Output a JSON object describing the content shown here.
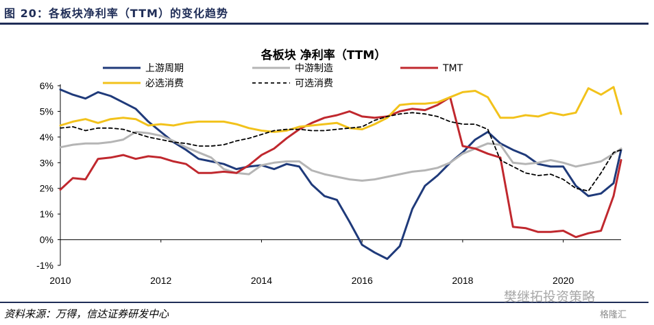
{
  "figure_title": "图 20：各板块净利率（TTM）的变化趋势",
  "source": "资料来源：万得，信达证券研发中心",
  "watermark": "樊继拓投资策略",
  "watermark2": "格隆汇",
  "colors": {
    "title_rule": "#1f2d57",
    "upstream": "#1f3a7a",
    "midstream": "#b5b5b5",
    "tmt": "#c0282e",
    "consumer_staples": "#f2c21b",
    "consumer_disc": "#000000"
  },
  "chart_data": {
    "type": "line",
    "title": "各板块 净利率（TTM）",
    "xlabel": "",
    "ylabel": "",
    "xlim": [
      2010.0,
      2021.15
    ],
    "ylim": [
      -1,
      6
    ],
    "x_ticks": [
      "2010",
      "2012",
      "2014",
      "2016",
      "2018",
      "2020"
    ],
    "y_ticks": [
      "-1%",
      "0%",
      "1%",
      "2%",
      "3%",
      "4%",
      "5%",
      "6%"
    ],
    "y_tick_values": [
      -1,
      0,
      1,
      2,
      3,
      4,
      5,
      6
    ],
    "legend_placement": "top",
    "series": [
      {
        "name": "上游周期",
        "color_key": "upstream",
        "dash": false,
        "x": [
          2010.0,
          2010.25,
          2010.5,
          2010.75,
          2011.0,
          2011.25,
          2011.5,
          2011.75,
          2012.0,
          2012.25,
          2012.5,
          2012.75,
          2013.0,
          2013.25,
          2013.5,
          2013.75,
          2014.0,
          2014.25,
          2014.5,
          2014.75,
          2015.0,
          2015.25,
          2015.5,
          2015.75,
          2016.0,
          2016.25,
          2016.5,
          2016.75,
          2017.0,
          2017.25,
          2017.5,
          2017.75,
          2018.0,
          2018.25,
          2018.5,
          2018.75,
          2019.0,
          2019.25,
          2019.5,
          2019.75,
          2020.0,
          2020.25,
          2020.5,
          2020.75,
          2021.0,
          2021.15
        ],
        "values": [
          5.85,
          5.65,
          5.5,
          5.75,
          5.6,
          5.35,
          5.1,
          4.6,
          4.2,
          3.8,
          3.5,
          3.15,
          3.05,
          2.95,
          2.75,
          2.85,
          2.9,
          2.75,
          2.95,
          2.85,
          2.15,
          1.7,
          1.55,
          0.7,
          -0.2,
          -0.5,
          -0.75,
          -0.25,
          1.2,
          2.1,
          2.5,
          3.0,
          3.4,
          3.9,
          4.2,
          3.75,
          3.5,
          3.3,
          2.95,
          2.85,
          2.85,
          2.1,
          1.7,
          1.8,
          2.2,
          3.5
        ]
      },
      {
        "name": "中游制造",
        "color_key": "midstream",
        "dash": false,
        "x": [
          2010.0,
          2010.25,
          2010.5,
          2010.75,
          2011.0,
          2011.25,
          2011.5,
          2011.75,
          2012.0,
          2012.25,
          2012.5,
          2012.75,
          2013.0,
          2013.25,
          2013.5,
          2013.75,
          2014.0,
          2014.25,
          2014.5,
          2014.75,
          2015.0,
          2015.25,
          2015.5,
          2015.75,
          2016.0,
          2016.25,
          2016.5,
          2016.75,
          2017.0,
          2017.25,
          2017.5,
          2017.75,
          2018.0,
          2018.25,
          2018.5,
          2018.75,
          2019.0,
          2019.25,
          2019.5,
          2019.75,
          2020.0,
          2020.25,
          2020.5,
          2020.75,
          2021.0,
          2021.15
        ],
        "values": [
          3.6,
          3.7,
          3.75,
          3.75,
          3.8,
          3.9,
          4.2,
          4.15,
          4.05,
          3.85,
          3.6,
          3.4,
          3.2,
          2.75,
          2.6,
          2.55,
          2.9,
          3.0,
          3.05,
          3.05,
          2.7,
          2.55,
          2.45,
          2.35,
          2.3,
          2.35,
          2.45,
          2.55,
          2.65,
          2.7,
          2.8,
          3.0,
          3.35,
          3.55,
          3.75,
          3.7,
          3.0,
          2.95,
          3.0,
          3.1,
          3.0,
          2.85,
          2.95,
          3.05,
          3.35,
          3.55
        ]
      },
      {
        "name": "TMT",
        "color_key": "tmt",
        "dash": false,
        "x": [
          2010.0,
          2010.25,
          2010.5,
          2010.75,
          2011.0,
          2011.25,
          2011.5,
          2011.75,
          2012.0,
          2012.25,
          2012.5,
          2012.75,
          2013.0,
          2013.25,
          2013.5,
          2013.75,
          2014.0,
          2014.25,
          2014.5,
          2014.75,
          2015.0,
          2015.25,
          2015.5,
          2015.75,
          2016.0,
          2016.25,
          2016.5,
          2016.75,
          2017.0,
          2017.25,
          2017.5,
          2017.75,
          2018.0,
          2018.25,
          2018.5,
          2018.75,
          2019.0,
          2019.25,
          2019.5,
          2019.75,
          2020.0,
          2020.25,
          2020.5,
          2020.75,
          2021.0,
          2021.15
        ],
        "values": [
          1.95,
          2.4,
          2.35,
          3.15,
          3.2,
          3.3,
          3.15,
          3.25,
          3.2,
          3.05,
          2.95,
          2.6,
          2.6,
          2.65,
          2.6,
          2.9,
          3.3,
          3.55,
          3.95,
          4.3,
          4.55,
          4.75,
          4.85,
          5.0,
          4.8,
          4.75,
          4.8,
          5.0,
          5.1,
          5.05,
          5.25,
          5.55,
          3.65,
          3.55,
          3.35,
          3.2,
          0.5,
          0.45,
          0.3,
          0.3,
          0.35,
          0.1,
          0.25,
          0.35,
          1.7,
          3.1
        ]
      },
      {
        "name": "必选消费",
        "color_key": "consumer_staples",
        "dash": false,
        "x": [
          2010.0,
          2010.25,
          2010.5,
          2010.75,
          2011.0,
          2011.25,
          2011.5,
          2011.75,
          2012.0,
          2012.25,
          2012.5,
          2012.75,
          2013.0,
          2013.25,
          2013.5,
          2013.75,
          2014.0,
          2014.25,
          2014.5,
          2014.75,
          2015.0,
          2015.25,
          2015.5,
          2015.75,
          2016.0,
          2016.25,
          2016.5,
          2016.75,
          2017.0,
          2017.25,
          2017.5,
          2017.75,
          2018.0,
          2018.25,
          2018.5,
          2018.75,
          2019.0,
          2019.25,
          2019.5,
          2019.75,
          2020.0,
          2020.25,
          2020.5,
          2020.75,
          2021.0,
          2021.15
        ],
        "values": [
          4.45,
          4.6,
          4.7,
          4.55,
          4.7,
          4.75,
          4.7,
          4.45,
          4.5,
          4.45,
          4.55,
          4.6,
          4.6,
          4.6,
          4.5,
          4.35,
          4.25,
          4.2,
          4.25,
          4.4,
          4.45,
          4.5,
          4.55,
          4.35,
          4.3,
          4.5,
          4.75,
          5.25,
          5.3,
          5.3,
          5.35,
          5.55,
          5.75,
          5.8,
          5.55,
          4.75,
          4.75,
          4.85,
          4.8,
          4.95,
          4.85,
          4.95,
          5.9,
          5.65,
          5.95,
          4.9
        ]
      },
      {
        "name": "中游制造-dummy",
        "hidden": true,
        "color_key": "midstream",
        "dash": false,
        "x": [],
        "values": []
      },
      {
        "name": "可选消费",
        "color_key": "consumer_disc",
        "dash": true,
        "x": [
          2010.0,
          2010.25,
          2010.5,
          2010.75,
          2011.0,
          2011.25,
          2011.5,
          2011.75,
          2012.0,
          2012.25,
          2012.5,
          2012.75,
          2013.0,
          2013.25,
          2013.5,
          2013.75,
          2014.0,
          2014.25,
          2014.5,
          2014.75,
          2015.0,
          2015.25,
          2015.5,
          2015.75,
          2016.0,
          2016.25,
          2016.5,
          2016.75,
          2017.0,
          2017.25,
          2017.5,
          2017.75,
          2018.0,
          2018.25,
          2018.5,
          2018.75,
          2019.0,
          2019.25,
          2019.5,
          2019.75,
          2020.0,
          2020.25,
          2020.5,
          2020.75,
          2021.0,
          2021.15
        ],
        "values": [
          4.35,
          4.4,
          4.25,
          4.35,
          4.35,
          4.3,
          4.15,
          4.0,
          3.9,
          3.8,
          3.75,
          3.65,
          3.65,
          3.7,
          3.85,
          3.95,
          4.1,
          4.25,
          4.3,
          4.3,
          4.25,
          4.25,
          4.3,
          4.35,
          4.4,
          4.65,
          4.8,
          4.9,
          4.95,
          4.9,
          4.8,
          4.6,
          4.5,
          4.5,
          4.3,
          3.1,
          2.85,
          2.6,
          2.5,
          2.55,
          2.35,
          2.0,
          1.9,
          2.6,
          3.4,
          3.5
        ]
      }
    ],
    "legend": [
      {
        "label": "上游周期",
        "color_key": "upstream",
        "dash": false
      },
      {
        "label": "中游制造",
        "color_key": "midstream",
        "dash": false
      },
      {
        "label": "TMT",
        "color_key": "tmt",
        "dash": false
      },
      {
        "label": "必选消费",
        "color_key": "consumer_staples",
        "dash": false
      },
      {
        "label": "可选消费",
        "color_key": "consumer_disc",
        "dash": true
      }
    ]
  }
}
